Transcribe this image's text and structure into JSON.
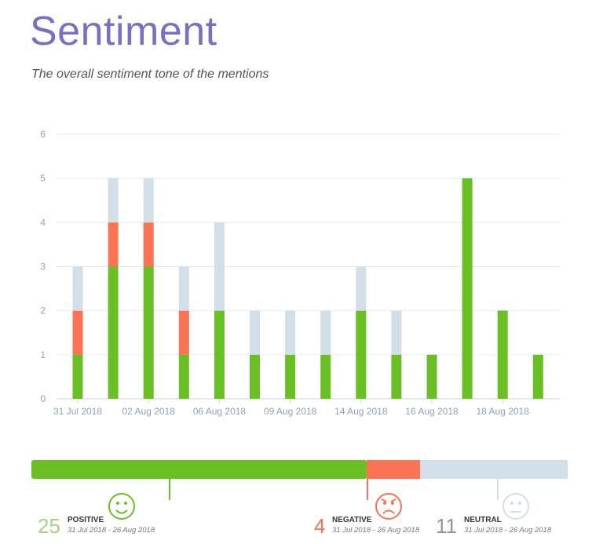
{
  "header": {
    "title": "Sentiment",
    "subtitle": "The overall sentiment tone of the mentions"
  },
  "colors": {
    "positive": "#6abf24",
    "negative": "#f97354",
    "neutral": "#d2dfe8",
    "axis": "#8fa3b8"
  },
  "chart_data": {
    "type": "bar",
    "stacked": true,
    "grid": true,
    "categories": [
      "31 Jul 2018",
      "",
      "02 Aug 2018",
      "",
      "06 Aug 2018",
      "",
      "09 Aug 2018",
      "",
      "14 Aug 2018",
      "",
      "16 Aug 2018",
      "",
      "18 Aug 2018",
      ""
    ],
    "ylim": [
      0,
      6
    ],
    "yticks": [
      0,
      1,
      2,
      3,
      4,
      5,
      6
    ],
    "series": [
      {
        "name": "Positive",
        "values": [
          1,
          3,
          3,
          1,
          2,
          1,
          1,
          1,
          2,
          1,
          1,
          5,
          2,
          1
        ]
      },
      {
        "name": "Negative",
        "values": [
          1,
          1,
          1,
          1,
          0,
          0,
          0,
          0,
          0,
          0,
          0,
          0,
          0,
          0
        ]
      },
      {
        "name": "Neutral",
        "values": [
          1,
          1,
          1,
          1,
          2,
          1,
          1,
          1,
          1,
          1,
          0,
          0,
          0,
          0
        ]
      }
    ]
  },
  "summary": {
    "positive": {
      "count": "25",
      "label": "POSITIVE",
      "range": "31 Jul 2018 - 26 Aug 2018",
      "icon": "smile-icon"
    },
    "negative": {
      "count": "4",
      "label": "NEGATIVE",
      "range": "31 Jul 2018 - 26 Aug 2018",
      "icon": "angry-icon"
    },
    "neutral": {
      "count": "11",
      "label": "NEUTRAL",
      "range": "31 Jul 2018 - 26 Aug 2018",
      "icon": "neutral-face-icon"
    }
  }
}
